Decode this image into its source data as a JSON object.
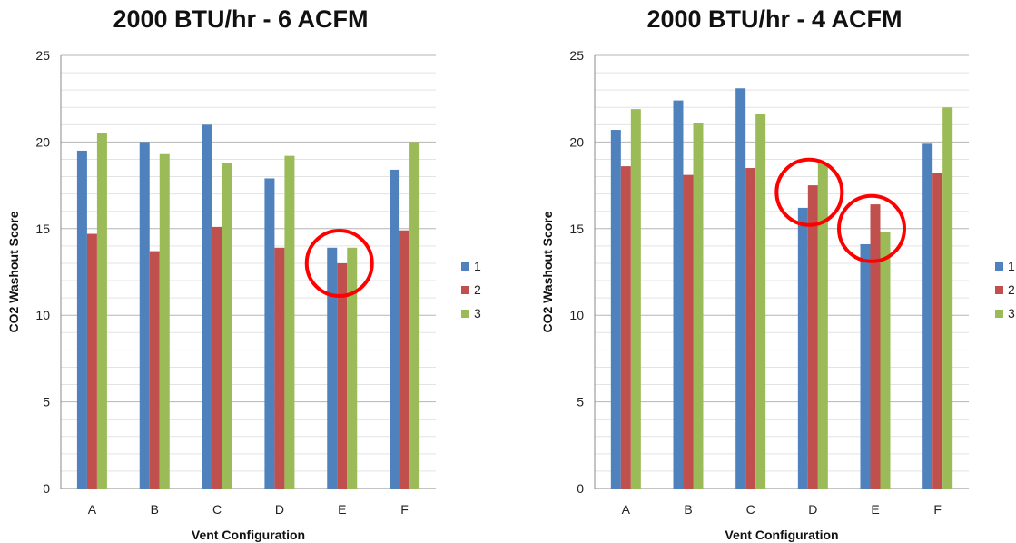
{
  "chart_data": [
    {
      "type": "bar",
      "title": "2000 BTU/hr - 6 ACFM",
      "xlabel": "Vent Configuration",
      "ylabel": "CO2 Washout Score",
      "ylim": [
        0,
        25
      ],
      "yticks": [
        0,
        5,
        10,
        15,
        20,
        25
      ],
      "minor_gridlines": true,
      "legend_position": "right",
      "categories": [
        "A",
        "B",
        "C",
        "D",
        "E",
        "F"
      ],
      "series": [
        {
          "name": "1",
          "color": "#4F81BD",
          "values": [
            19.5,
            20.0,
            21.0,
            17.9,
            13.9,
            18.4
          ]
        },
        {
          "name": "2",
          "color": "#C0504D",
          "values": [
            14.7,
            13.7,
            15.1,
            13.9,
            13.0,
            14.9
          ]
        },
        {
          "name": "3",
          "color": "#9BBB59",
          "values": [
            20.5,
            19.3,
            18.8,
            19.2,
            13.9,
            20.0
          ]
        }
      ],
      "annotations": [
        {
          "shape": "circle",
          "color": "#FF0000",
          "category": "E",
          "y": 13.0
        }
      ]
    },
    {
      "type": "bar",
      "title": "2000 BTU/hr - 4 ACFM",
      "xlabel": "Vent Configuration",
      "ylabel": "CO2 Washout Score",
      "ylim": [
        0,
        25
      ],
      "yticks": [
        0,
        5,
        10,
        15,
        20,
        25
      ],
      "minor_gridlines": true,
      "legend_position": "right",
      "categories": [
        "A",
        "B",
        "C",
        "D",
        "E",
        "F"
      ],
      "series": [
        {
          "name": "1",
          "color": "#4F81BD",
          "values": [
            20.7,
            22.4,
            23.1,
            16.2,
            14.1,
            19.9
          ]
        },
        {
          "name": "2",
          "color": "#C0504D",
          "values": [
            18.6,
            18.1,
            18.5,
            17.5,
            16.4,
            18.2
          ]
        },
        {
          "name": "3",
          "color": "#9BBB59",
          "values": [
            21.9,
            21.1,
            21.6,
            18.8,
            14.8,
            22.0
          ]
        }
      ],
      "annotations": [
        {
          "shape": "circle",
          "color": "#FF0000",
          "category": "D",
          "y": 17.1
        },
        {
          "shape": "circle",
          "color": "#FF0000",
          "category": "E",
          "y": 15.0
        }
      ]
    }
  ]
}
